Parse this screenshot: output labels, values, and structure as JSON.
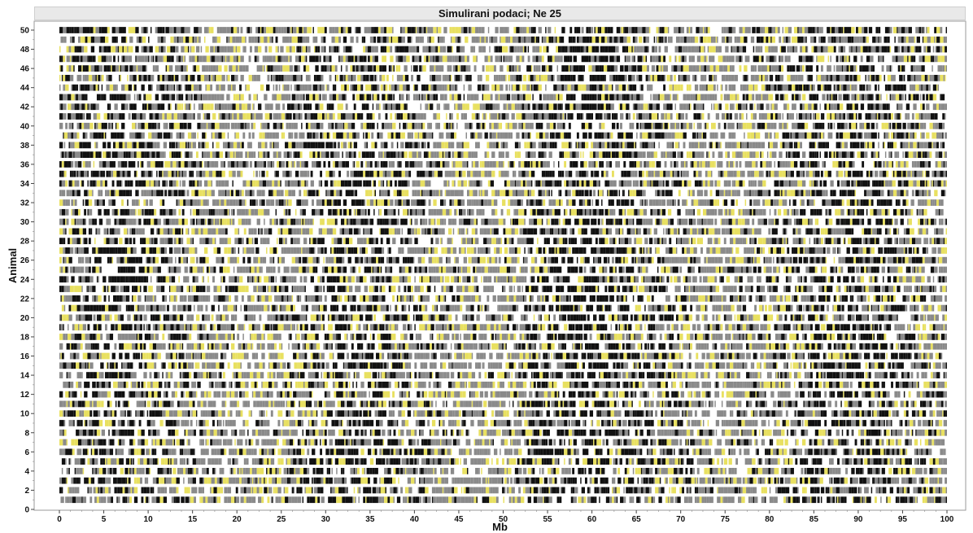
{
  "chart_data": {
    "type": "heatmap",
    "title": "Simulirani podaci; Ne 25",
    "xlabel": "Mb",
    "ylabel": "Animal",
    "xlim": [
      0,
      100
    ],
    "ylim": [
      0,
      50
    ],
    "x_ticks": [
      0,
      5,
      10,
      15,
      20,
      25,
      30,
      35,
      40,
      45,
      50,
      55,
      60,
      65,
      70,
      75,
      80,
      85,
      90,
      95,
      100
    ],
    "y_ticks": [
      0,
      2,
      4,
      6,
      8,
      10,
      12,
      14,
      16,
      18,
      20,
      22,
      24,
      26,
      28,
      30,
      32,
      34,
      36,
      38,
      40,
      42,
      44,
      46,
      48,
      50
    ],
    "rows": 50,
    "grid": false,
    "legend": "none",
    "colors": {
      "genotype_dark": "#111111",
      "genotype_grey": "#8a8a8a",
      "genotype_light": "#ffffff",
      "genotype_highlight": "#e8e060"
    }
  }
}
